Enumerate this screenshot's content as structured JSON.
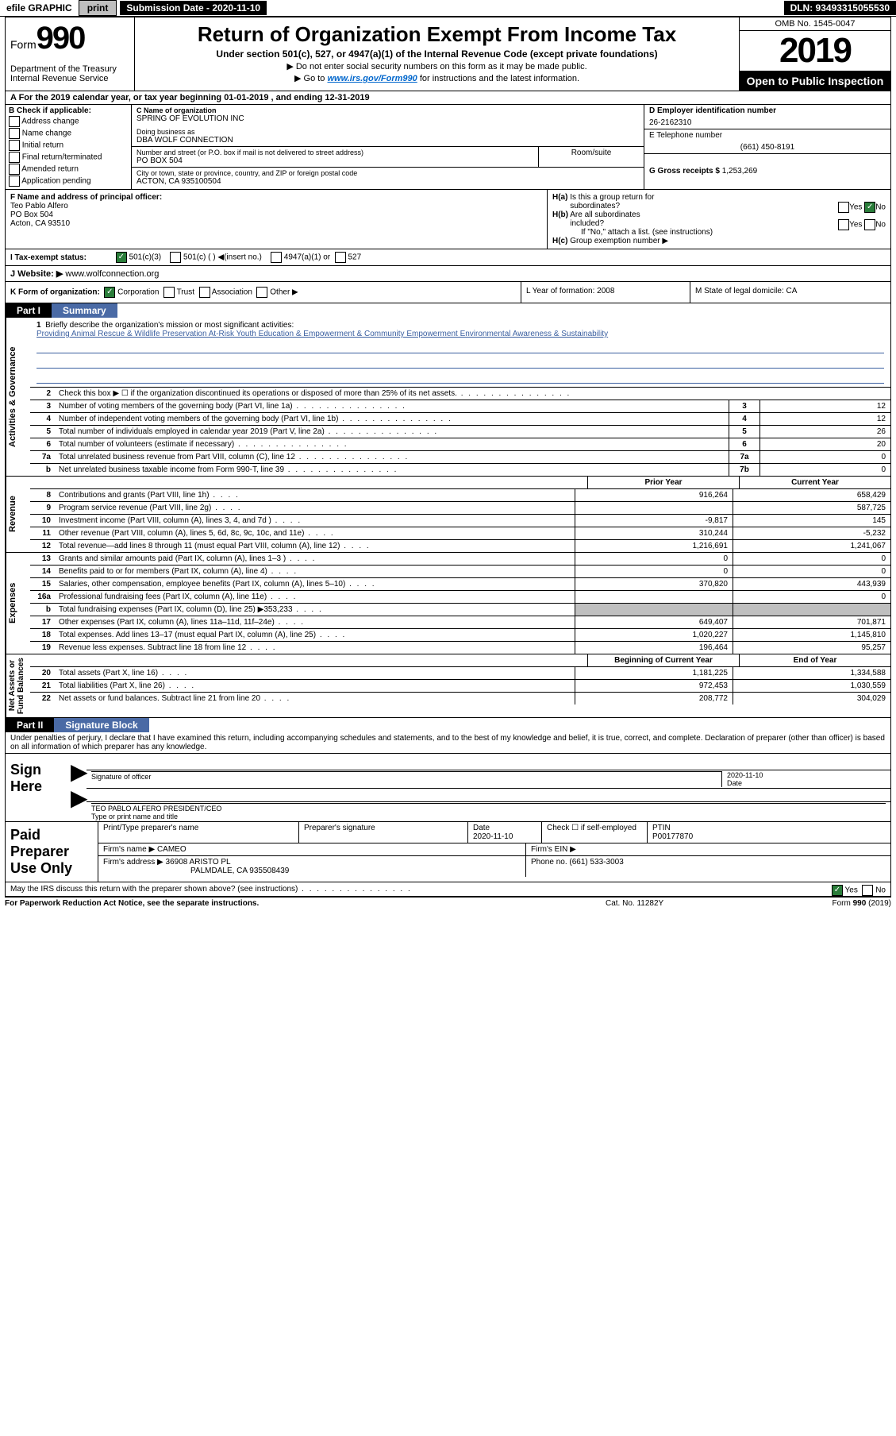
{
  "topbar": {
    "efile": "efile GRAPHIC",
    "print": "print",
    "subdate_lbl": "Submission Date - 2020-11-10",
    "dln": "DLN: 93493315055530"
  },
  "header": {
    "form_word": "Form",
    "form_num": "990",
    "dept": "Department of the Treasury\nInternal Revenue Service",
    "title": "Return of Organization Exempt From Income Tax",
    "sub": "Under section 501(c), 527, or 4947(a)(1) of the Internal Revenue Code (except private foundations)",
    "arrow1": "▶ Do not enter social security numbers on this form as it may be made public.",
    "arrow2_pre": "▶ Go to ",
    "arrow2_link": "www.irs.gov/Form990",
    "arrow2_post": " for instructions and the latest information.",
    "omb": "OMB No. 1545-0047",
    "year": "2019",
    "open": "Open to Public Inspection"
  },
  "row_a": "A For the 2019 calendar year, or tax year beginning 01-01-2019    , and ending 12-31-2019",
  "col_b": {
    "hdr": "B Check if applicable:",
    "opts": [
      "Address change",
      "Name change",
      "Initial return",
      "Final return/terminated",
      "Amended return",
      "Application pending"
    ]
  },
  "col_c": {
    "name_lbl": "C Name of organization",
    "name": "SPRING OF EVOLUTION INC",
    "dba_lbl": "Doing business as",
    "dba": "DBA WOLF CONNECTION",
    "street_lbl": "Number and street (or P.O. box if mail is not delivered to street address)",
    "street": "PO BOX 504",
    "suite_lbl": "Room/suite",
    "city_lbl": "City or town, state or province, country, and ZIP or foreign postal code",
    "city": "ACTON, CA  935100504"
  },
  "col_de": {
    "d_lbl": "D Employer identification number",
    "d_val": "26-2162310",
    "e_lbl": "E Telephone number",
    "e_val": "(661) 450-8191",
    "g_lbl": "G Gross receipts $",
    "g_val": "1,253,269"
  },
  "col_f": {
    "lbl": "F  Name and address of principal officer:",
    "name": "Teo Pablo Alfero",
    "addr1": "PO Box 504",
    "addr2": "Acton, CA  93510"
  },
  "col_h": {
    "ha": "H(a)  Is this a group return for subordinates?",
    "hb": "H(b)  Are all subordinates included?",
    "hb2": "If \"No,\" attach a list. (see instructions)",
    "hc": "H(c)  Group exemption number ▶",
    "yes": "Yes",
    "no": "No"
  },
  "row_i": {
    "lbl": "I    Tax-exempt status:",
    "o1": "501(c)(3)",
    "o2": "501(c) (   ) ◀(insert no.)",
    "o3": "4947(a)(1) or",
    "o4": "527"
  },
  "row_j": {
    "lbl": "J    Website: ▶",
    "val": "  www.wolfconnection.org"
  },
  "row_k": {
    "k": "K Form of organization:",
    "k1": "Corporation",
    "k2": "Trust",
    "k3": "Association",
    "k4": "Other ▶",
    "l": "L Year of formation: 2008",
    "m": "M State of legal domicile: CA"
  },
  "part1": {
    "num": "Part I",
    "title": "Summary"
  },
  "mission": {
    "num": "1",
    "lbl": "Briefly describe the organization's mission or most significant activities:",
    "txt": "Providing Animal Rescue & Wildlife Preservation At-Risk Youth Education & Empowerment & Community Empowerment Environmental Awareness & Sustainability"
  },
  "gov_rows": [
    {
      "n": "2",
      "t": "Check this box ▶ ☐  if the organization discontinued its operations or disposed of more than 25% of its net assets.",
      "box": "",
      "v": ""
    },
    {
      "n": "3",
      "t": "Number of voting members of the governing body (Part VI, line 1a)",
      "box": "3",
      "v": "12"
    },
    {
      "n": "4",
      "t": "Number of independent voting members of the governing body (Part VI, line 1b)",
      "box": "4",
      "v": "12"
    },
    {
      "n": "5",
      "t": "Total number of individuals employed in calendar year 2019 (Part V, line 2a)",
      "box": "5",
      "v": "26"
    },
    {
      "n": "6",
      "t": "Total number of volunteers (estimate if necessary)",
      "box": "6",
      "v": "20"
    },
    {
      "n": "7a",
      "t": "Total unrelated business revenue from Part VIII, column (C), line 12",
      "box": "7a",
      "v": "0"
    },
    {
      "n": "b",
      "t": "Net unrelated business taxable income from Form 990-T, line 39",
      "box": "7b",
      "v": "0"
    }
  ],
  "py_cy": {
    "py": "Prior Year",
    "cy": "Current Year"
  },
  "rev_rows": [
    {
      "n": "8",
      "t": "Contributions and grants (Part VIII, line 1h)",
      "py": "916,264",
      "cy": "658,429"
    },
    {
      "n": "9",
      "t": "Program service revenue (Part VIII, line 2g)",
      "py": "",
      "cy": "587,725"
    },
    {
      "n": "10",
      "t": "Investment income (Part VIII, column (A), lines 3, 4, and 7d )",
      "py": "-9,817",
      "cy": "145"
    },
    {
      "n": "11",
      "t": "Other revenue (Part VIII, column (A), lines 5, 6d, 8c, 9c, 10c, and 11e)",
      "py": "310,244",
      "cy": "-5,232"
    },
    {
      "n": "12",
      "t": "Total revenue—add lines 8 through 11 (must equal Part VIII, column (A), line 12)",
      "py": "1,216,691",
      "cy": "1,241,067"
    }
  ],
  "exp_rows": [
    {
      "n": "13",
      "t": "Grants and similar amounts paid (Part IX, column (A), lines 1–3 )",
      "py": "0",
      "cy": "0"
    },
    {
      "n": "14",
      "t": "Benefits paid to or for members (Part IX, column (A), line 4)",
      "py": "0",
      "cy": "0"
    },
    {
      "n": "15",
      "t": "Salaries, other compensation, employee benefits (Part IX, column (A), lines 5–10)",
      "py": "370,820",
      "cy": "443,939"
    },
    {
      "n": "16a",
      "t": "Professional fundraising fees (Part IX, column (A), line 11e)",
      "py": "",
      "cy": "0"
    },
    {
      "n": "b",
      "t": "Total fundraising expenses (Part IX, column (D), line 25) ▶353,233",
      "py": "grey",
      "cy": "grey"
    },
    {
      "n": "17",
      "t": "Other expenses (Part IX, column (A), lines 11a–11d, 11f–24e)",
      "py": "649,407",
      "cy": "701,871"
    },
    {
      "n": "18",
      "t": "Total expenses. Add lines 13–17 (must equal Part IX, column (A), line 25)",
      "py": "1,020,227",
      "cy": "1,145,810"
    },
    {
      "n": "19",
      "t": "Revenue less expenses. Subtract line 18 from line 12",
      "py": "196,464",
      "cy": "95,257"
    }
  ],
  "na_hdr": {
    "b": "Beginning of Current Year",
    "e": "End of Year"
  },
  "na_rows": [
    {
      "n": "20",
      "t": "Total assets (Part X, line 16)",
      "py": "1,181,225",
      "cy": "1,334,588"
    },
    {
      "n": "21",
      "t": "Total liabilities (Part X, line 26)",
      "py": "972,453",
      "cy": "1,030,559"
    },
    {
      "n": "22",
      "t": "Net assets or fund balances. Subtract line 21 from line 20",
      "py": "208,772",
      "cy": "304,029"
    }
  ],
  "sides": {
    "gov": "Activities & Governance",
    "rev": "Revenue",
    "exp": "Expenses",
    "na": "Net Assets or\nFund Balances"
  },
  "part2": {
    "num": "Part II",
    "title": "Signature Block"
  },
  "decl": "Under penalties of perjury, I declare that I have examined this return, including accompanying schedules and statements, and to the best of my knowledge and belief, it is true, correct, and complete. Declaration of preparer (other than officer) is based on all information of which preparer has any knowledge.",
  "sign": {
    "lbl": "Sign Here",
    "sig_lbl": "Signature of officer",
    "date_lbl": "Date",
    "date": "2020-11-10",
    "name": "TEO PABLO ALFERO  PRESIDENT/CEO",
    "name_lbl": "Type or print name and title"
  },
  "paid": {
    "lbl": "Paid Preparer Use Only",
    "h1": "Print/Type preparer's name",
    "h2": "Preparer's signature",
    "h3": "Date",
    "h3v": "2020-11-10",
    "h4": "Check ☐ if self-employed",
    "h5": "PTIN",
    "h5v": "P00177870",
    "firm_lbl": "Firm's name      ▶",
    "firm": "CAMEO",
    "ein_lbl": "Firm's EIN ▶",
    "addr_lbl": "Firm's address ▶",
    "addr1": "36908 ARISTO PL",
    "addr2": "PALMDALE, CA  935508439",
    "phone_lbl": "Phone no.",
    "phone": "(661) 533-3003"
  },
  "discuss": "May the IRS discuss this return with the preparer shown above? (see instructions)",
  "foot": {
    "l": "For Paperwork Reduction Act Notice, see the separate instructions.",
    "m": "Cat. No. 11282Y",
    "r": "Form 990 (2019)"
  }
}
